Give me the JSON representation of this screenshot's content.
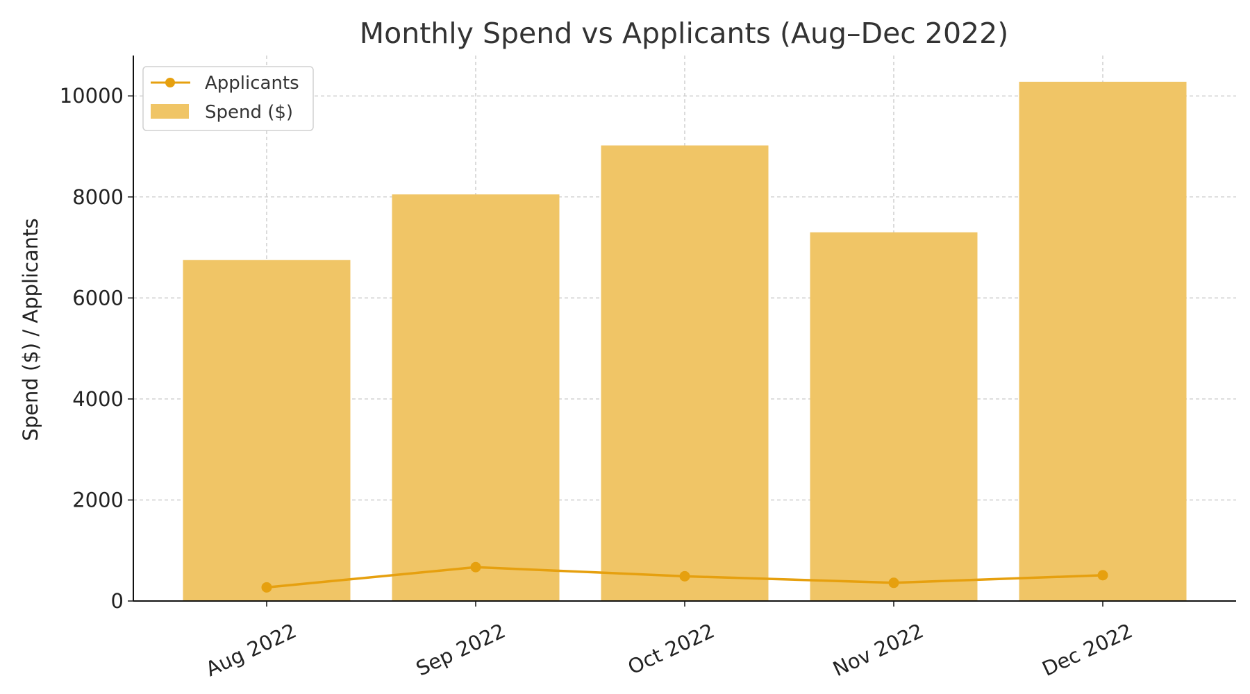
{
  "chart_data": {
    "type": "bar",
    "title": "Monthly Spend vs Applicants (Aug–Dec 2022)",
    "xlabel": "",
    "ylabel": "Spend ($) / Applicants",
    "categories": [
      "Aug 2022",
      "Sep 2022",
      "Oct 2022",
      "Nov 2022",
      "Dec 2022"
    ],
    "series": [
      {
        "name": "Spend ($)",
        "kind": "bar",
        "values": [
          6750,
          8050,
          9020,
          7300,
          10280
        ],
        "color": "#F0C566"
      },
      {
        "name": "Applicants",
        "kind": "line",
        "values": [
          270,
          670,
          490,
          360,
          510
        ],
        "color": "#E6A00F"
      }
    ],
    "ylim": [
      0,
      10800
    ],
    "yticks": [
      0,
      2000,
      4000,
      6000,
      8000,
      10000
    ],
    "ytick_labels": [
      "0",
      "2000",
      "4000",
      "6000",
      "8000",
      "10000"
    ],
    "grid": true,
    "legend": {
      "position": "top-left",
      "entries": [
        "Applicants",
        "Spend ($)"
      ]
    },
    "colors": {
      "bar": "#F0C566",
      "line": "#E6A00F",
      "grid": "#c8c8c8",
      "axis": "#111111"
    }
  }
}
